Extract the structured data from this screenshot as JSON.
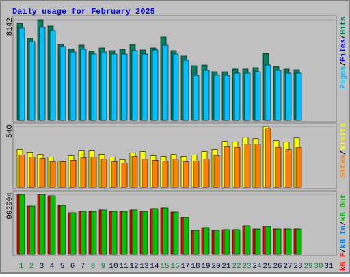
{
  "chart_data": {
    "type": "bar",
    "title": "Daily usage for February 2025",
    "categories": [
      "1",
      "2",
      "3",
      "4",
      "5",
      "6",
      "7",
      "8",
      "9",
      "10",
      "11",
      "12",
      "13",
      "14",
      "15",
      "16",
      "17",
      "18",
      "19",
      "20",
      "21",
      "22",
      "23",
      "24",
      "25",
      "26",
      "27",
      "28",
      "29",
      "30",
      "31"
    ],
    "category_colors": [
      "#008040",
      "#008040",
      "#000040",
      "#000040",
      "#000040",
      "#000040",
      "#000040",
      "#008040",
      "#008040",
      "#000040",
      "#000040",
      "#000040",
      "#000040",
      "#000040",
      "#008040",
      "#008040",
      "#000040",
      "#000040",
      "#000040",
      "#000040",
      "#000040",
      "#008040",
      "#008040",
      "#000040",
      "#000040",
      "#000040",
      "#000040",
      "#000040",
      "#008040",
      "#008040",
      "#000040"
    ],
    "separator": "/",
    "panels": [
      {
        "ylim": [
          0,
          8142
        ],
        "yticks": [
          8142
        ],
        "label_end": "top",
        "legend": [
          {
            "text": "Pages",
            "color": "#00c0ff"
          },
          {
            "text": "Files",
            "color": "#0000ff"
          },
          {
            "text": "Hits",
            "color": "#008060"
          }
        ],
        "series": [
          {
            "name": "Hits",
            "color": "#008060",
            "values": [
              7867,
              6648,
              8142,
              7645,
              6149,
              5761,
              6094,
              5595,
              5872,
              5651,
              5761,
              6149,
              5706,
              5872,
              6759,
              5651,
              5208,
              4432,
              4487,
              3933,
              3933,
              4155,
              4155,
              4266,
              5429,
              4377,
              4155,
              4100,
              null,
              null,
              null
            ]
          },
          {
            "name": "Pages",
            "color": "#00c0ff",
            "values": [
              7479,
              6371,
              7534,
              7257,
              5983,
              5540,
              5762,
              5374,
              5540,
              5374,
              5374,
              5651,
              5374,
              5706,
              6094,
              5374,
              4875,
              3656,
              4044,
              3656,
              3656,
              3823,
              3823,
              3933,
              4487,
              4044,
              3823,
              3823,
              null,
              null,
              null
            ]
          }
        ]
      },
      {
        "ylim": [
          0,
          540
        ],
        "yticks": [
          540
        ],
        "label_end": "top",
        "legend": [
          {
            "text": "Sites",
            "color": "#ff8000"
          },
          {
            "text": "Visits",
            "color": "#ffff00"
          }
        ],
        "series": [
          {
            "name": "Visits",
            "color": "#ffff00",
            "values": [
              336,
              312,
              294,
              270,
              234,
              282,
              324,
              324,
              294,
              270,
              246,
              306,
              318,
              282,
              276,
              294,
              276,
              288,
              318,
              336,
              408,
              402,
              444,
              432,
              540,
              414,
              402,
              438,
              null,
              null,
              null
            ]
          },
          {
            "name": "Sites",
            "color": "#ff8000",
            "values": [
              288,
              270,
              258,
              228,
              228,
              240,
              264,
              270,
              252,
              228,
              216,
              276,
              252,
              240,
              234,
              252,
              228,
              234,
              252,
              282,
              360,
              354,
              384,
              384,
              522,
              354,
              336,
              354,
              null,
              null,
              null
            ]
          }
        ]
      },
      {
        "ylim": [
          0,
          992904
        ],
        "yticks": [
          992904
        ],
        "label_end": "bottom",
        "legend": [
          {
            "text": "kB F",
            "color": "#ff0000"
          },
          {
            "text": "kB In",
            "color": "#0080ff"
          },
          {
            "text": "kB Out",
            "color": "#00c000"
          }
        ],
        "series": [
          {
            "name": "kB F",
            "color": "#ff0000",
            "values": [
              992904,
              801093,
              992904,
              970338,
              812376,
              688263,
              710829,
              710829,
              733395,
              710829,
              710829,
              733395,
              710829,
              755961,
              767244,
              699546,
              609282,
              394905,
              440037,
              394905,
              406188,
              406188,
              473886,
              417471,
              462603,
              417471,
              417471,
              417471,
              null,
              null,
              null
            ]
          },
          {
            "name": "kB Out",
            "color": "#00c000",
            "values": [
              992904,
              801093,
              992904,
              970338,
              812376,
              688263,
              710829,
              710829,
              733395,
              710829,
              710829,
              733395,
              710829,
              755961,
              767244,
              699546,
              609282,
              394905,
              440037,
              394905,
              406188,
              406188,
              473886,
              417471,
              462603,
              417471,
              417471,
              417471,
              null,
              null,
              null
            ]
          }
        ]
      }
    ]
  }
}
